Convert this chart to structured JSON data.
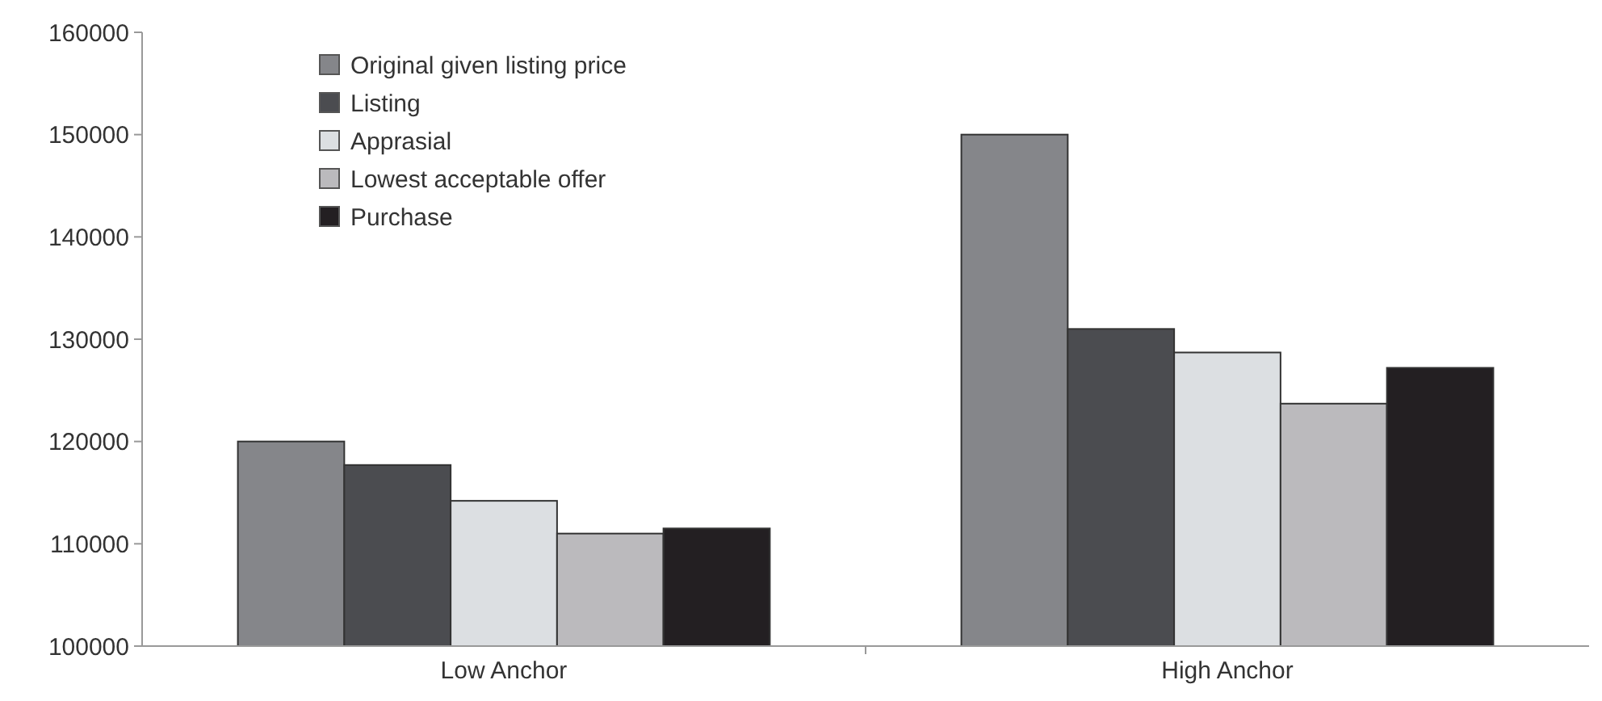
{
  "chart_data": {
    "type": "bar",
    "categories": [
      "Low Anchor",
      "High Anchor"
    ],
    "series": [
      {
        "name": "Original given listing price",
        "color": "#85868a",
        "values": [
          120000,
          150000
        ]
      },
      {
        "name": "Listing",
        "color": "#4b4c50",
        "values": [
          117700,
          131000
        ]
      },
      {
        "name": "Apprasial",
        "color": "#dcdfe2",
        "values": [
          114200,
          128700
        ]
      },
      {
        "name": "Lowest acceptable offer",
        "color": "#bbbabd",
        "values": [
          111000,
          123700
        ]
      },
      {
        "name": "Purchase",
        "color": "#231f22",
        "values": [
          111500,
          127200
        ]
      }
    ],
    "ylim": [
      100000,
      160000
    ],
    "yticks": [
      100000,
      110000,
      120000,
      130000,
      140000,
      150000,
      160000
    ],
    "grid": false,
    "legend": "top left"
  }
}
